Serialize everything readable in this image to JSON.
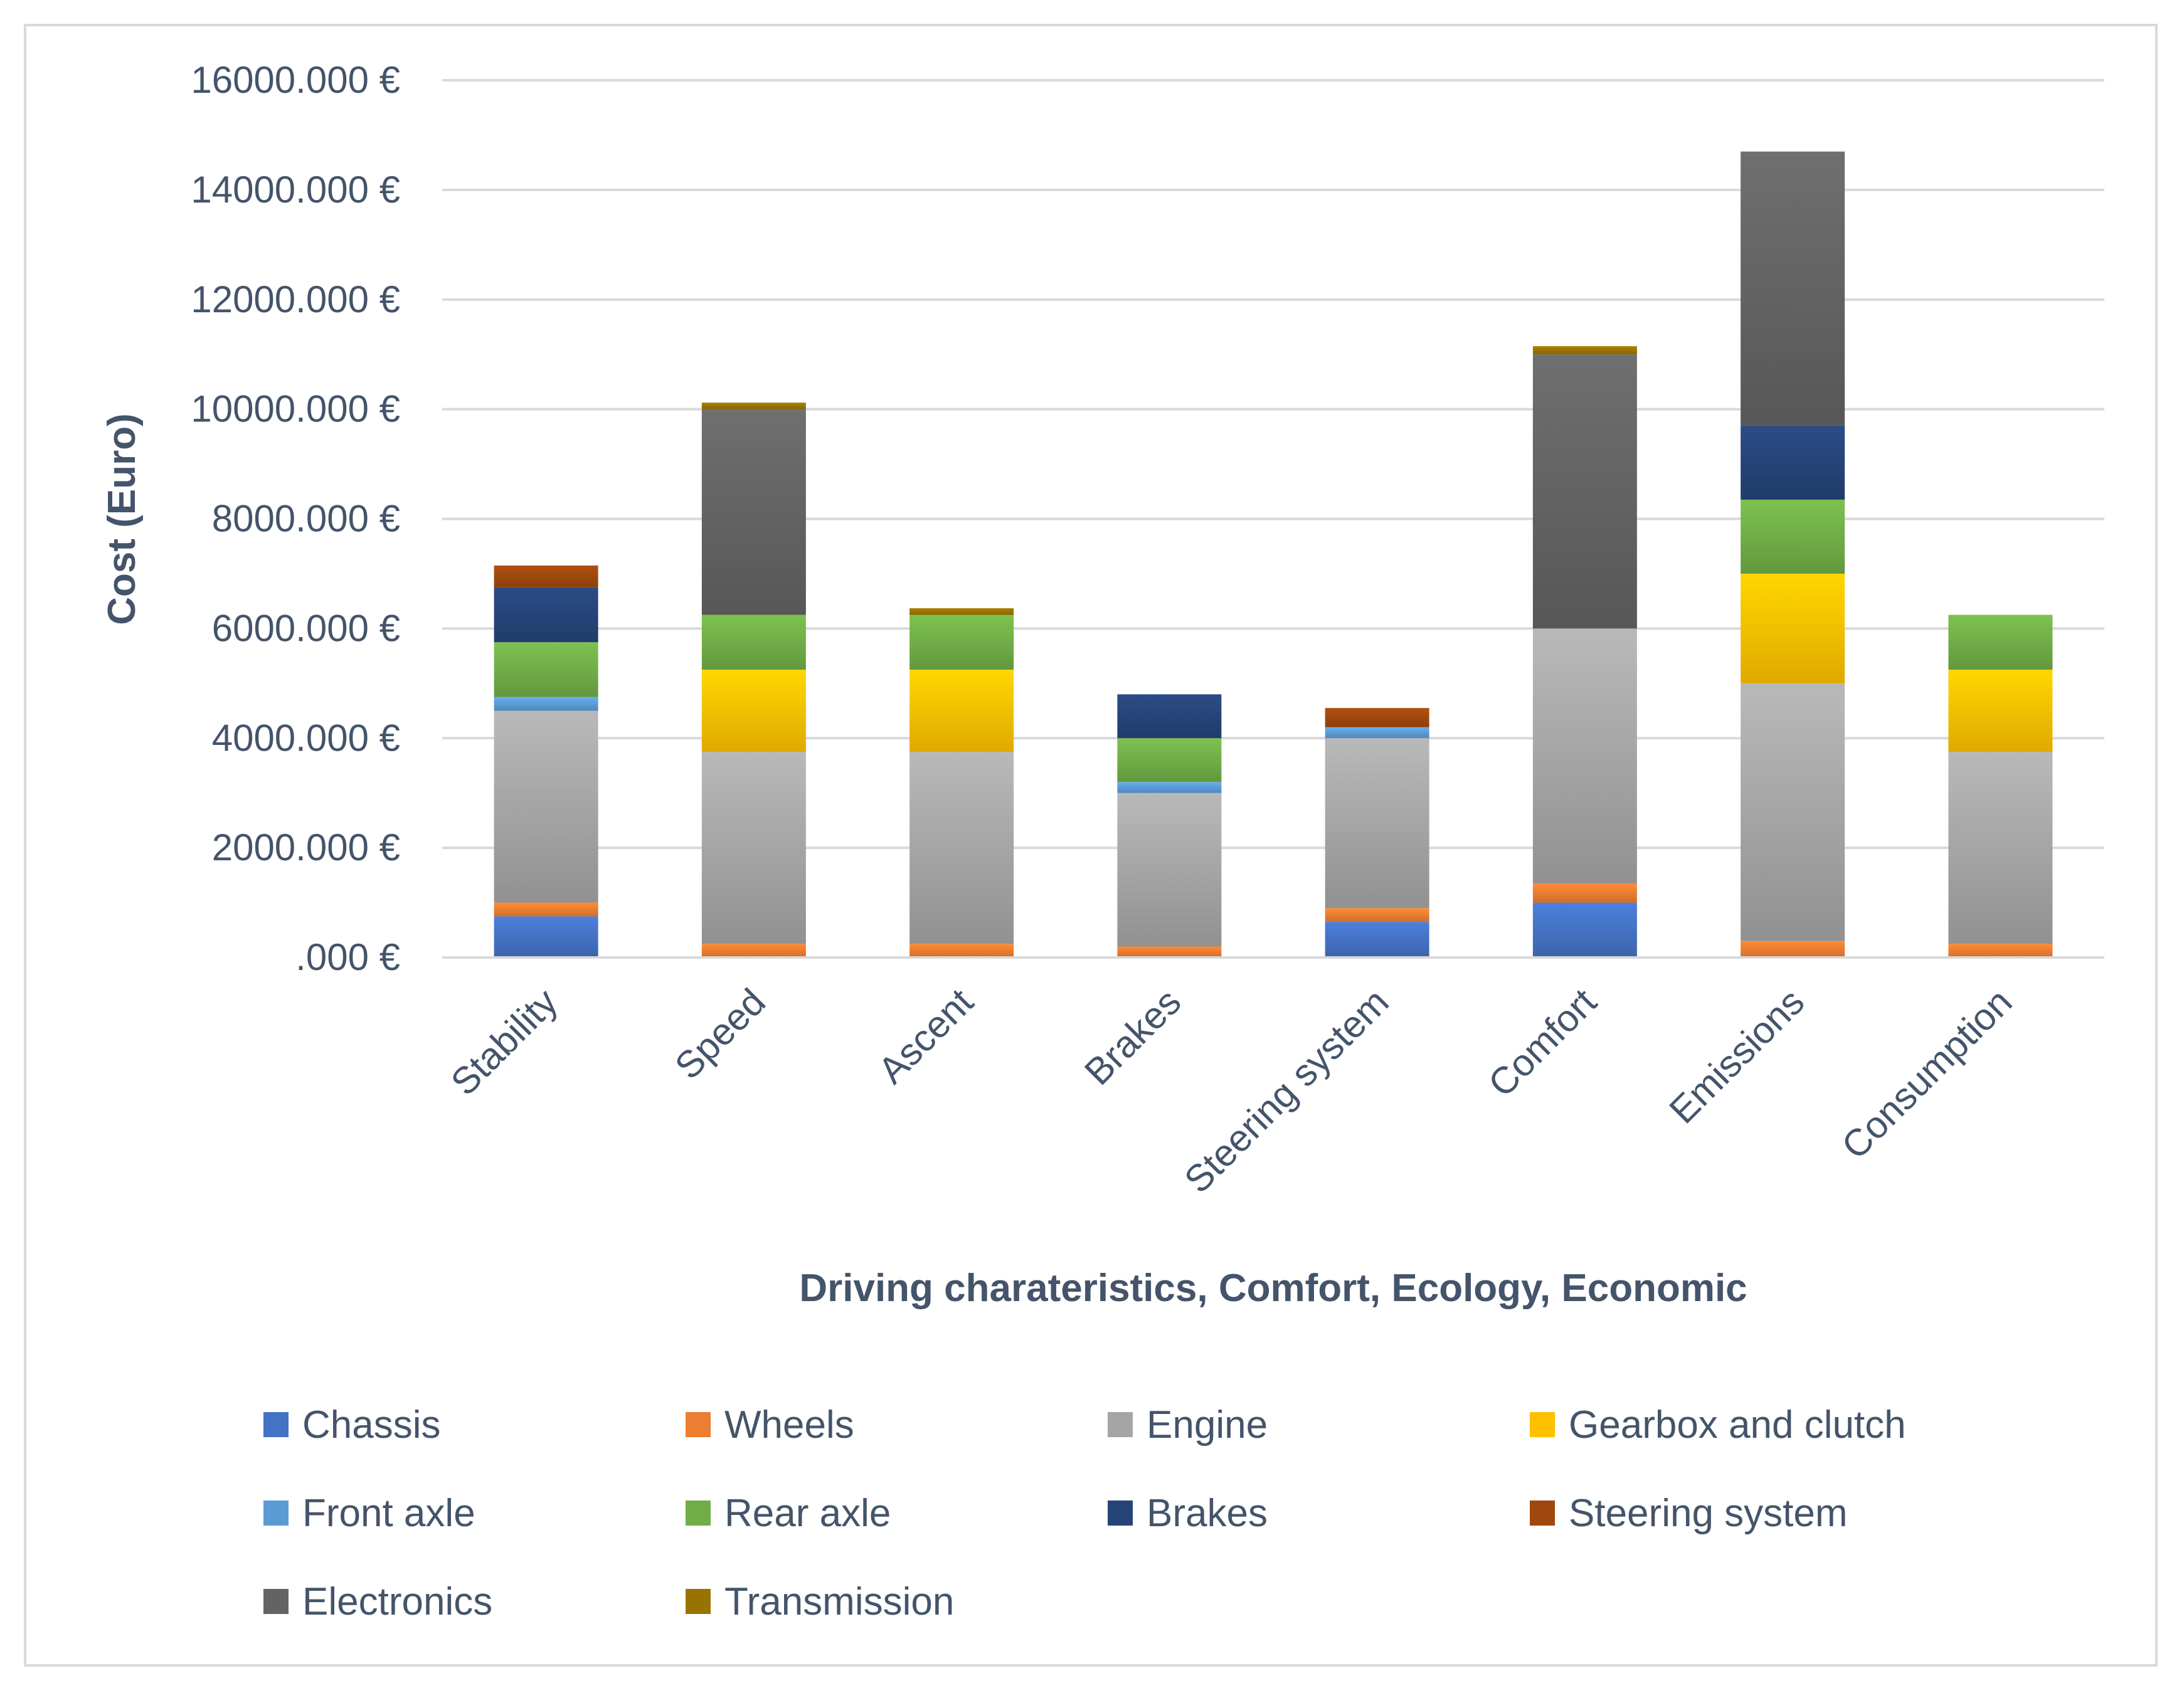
{
  "chart_data": {
    "type": "bar",
    "stacked": true,
    "title": "",
    "xlabel": "Driving charateristics, Comfort, Ecology, Economic",
    "ylabel": "Cost (Euro)",
    "ylim": [
      0,
      16000
    ],
    "yticks": [
      0,
      2000,
      4000,
      6000,
      8000,
      10000,
      12000,
      14000,
      16000
    ],
    "ytick_labels": [
      ".000 €",
      "2000.000 €",
      "4000.000 €",
      "6000.000 €",
      "8000.000 €",
      "10000.000 €",
      "12000.000 €",
      "14000.000 €",
      "16000.000 €"
    ],
    "grid": true,
    "legend_position": "bottom",
    "categories": [
      "Stability",
      "Speed",
      "Ascent",
      "Brakes",
      "Steering system",
      "Comfort",
      "Emissions",
      "Consumption"
    ],
    "series": [
      {
        "name": "Chassis",
        "color": "#4472c4",
        "values": [
          750,
          0,
          0,
          0,
          650,
          1000,
          0,
          0
        ]
      },
      {
        "name": "Wheels",
        "color": "#ed7d31",
        "values": [
          250,
          250,
          250,
          200,
          250,
          350,
          300,
          250
        ]
      },
      {
        "name": "Engine",
        "color": "#a5a5a5",
        "values": [
          3500,
          3500,
          3500,
          2800,
          3100,
          4650,
          4700,
          3500
        ]
      },
      {
        "name": "Gearbox and clutch",
        "color": "#ffc000",
        "values": [
          0,
          1500,
          1500,
          0,
          0,
          0,
          2000,
          1500
        ]
      },
      {
        "name": "Front axle",
        "color": "#5b9bd5",
        "values": [
          250,
          0,
          0,
          200,
          200,
          0,
          0,
          0
        ]
      },
      {
        "name": "Rear axle",
        "color": "#70ad47",
        "values": [
          1000,
          1000,
          1000,
          800,
          0,
          0,
          1350,
          1000
        ]
      },
      {
        "name": "Brakes",
        "color": "#264478",
        "values": [
          1000,
          0,
          0,
          800,
          0,
          0,
          1350,
          0
        ]
      },
      {
        "name": "Steering system",
        "color": "#9e480e",
        "values": [
          400,
          0,
          0,
          0,
          350,
          0,
          0,
          0
        ]
      },
      {
        "name": "Electronics",
        "color": "#636363",
        "values": [
          0,
          3750,
          0,
          0,
          0,
          5000,
          5000,
          0
        ]
      },
      {
        "name": "Transmission",
        "color": "#997300",
        "values": [
          0,
          120,
          120,
          0,
          0,
          150,
          0,
          0
        ]
      }
    ]
  }
}
